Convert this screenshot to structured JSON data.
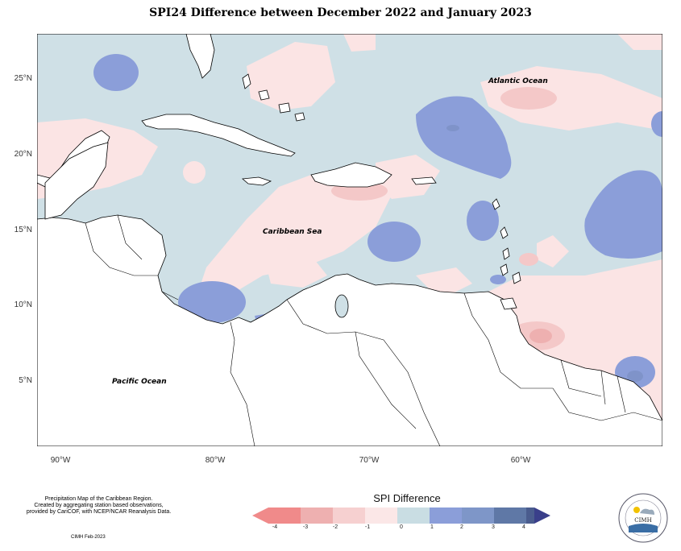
{
  "title": "SPI24 Difference between December 2022 and January 2023",
  "map": {
    "labels": {
      "atlantic": "Atlantic Ocean",
      "caribbean": "Caribbean Sea",
      "pacific": "Pacific Ocean"
    },
    "y_ticks": [
      "25°N",
      "20°N",
      "15°N",
      "10°N",
      "5°N"
    ],
    "x_ticks": [
      "90°W",
      "80°W",
      "70°W",
      "60°W"
    ],
    "colors": {
      "ocean_base": "#cfe0e6",
      "neutral_pos": "#c9dde3",
      "neutral_neg": "#fbe4e4",
      "wet_1": "#8b9ed9",
      "wet_2": "#7f93c9",
      "dry_1": "#f4c8c8",
      "dry_2": "#eeb0b0",
      "land": "#ffffff"
    }
  },
  "notes": {
    "line1": "Precipitation Map of the Caribbean Region.",
    "line2": "Created by aggregating station based observations,",
    "line3": "provided by CariCOF, with NCEP/NCAR Reanalysis Data.",
    "credit": "CIMH Feb-2023"
  },
  "legend": {
    "title": "SPI Difference",
    "ticks": [
      "-4",
      "-3",
      "-2",
      "-1",
      "0",
      "1",
      "2",
      "3",
      "4"
    ],
    "colors": [
      "#f08a8a",
      "#eeb0b0",
      "#f6d0d0",
      "#fbe7e7",
      "#c9dde3",
      "#8b9ed9",
      "#7e96c8",
      "#5f78a6",
      "#4a5c8e",
      "#3a3f8a"
    ]
  },
  "logo": {
    "name": "CIMH",
    "ring_top": "Caribbean Institute for",
    "ring_bottom": "Meteorology and Hydrology"
  }
}
